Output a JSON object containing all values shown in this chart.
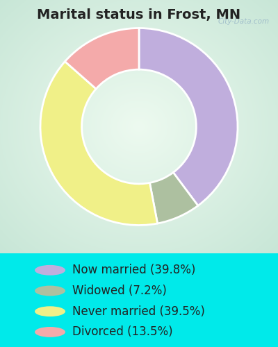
{
  "title": "Marital status in Frost, MN",
  "slices": [
    39.8,
    7.2,
    39.5,
    13.5
  ],
  "labels": [
    "Now married (39.8%)",
    "Widowed (7.2%)",
    "Never married (39.5%)",
    "Divorced (13.5%)"
  ],
  "colors": [
    "#c0aedd",
    "#adc0a0",
    "#f0f088",
    "#f4aaaa"
  ],
  "legend_colors": [
    "#c0aedd",
    "#adc0a0",
    "#f0f088",
    "#f4aaaa"
  ],
  "start_angle": 90,
  "donut_width": 0.42,
  "bg_outer": "#00eaea",
  "chart_bg_light": "#e8f8f0",
  "chart_bg_dark": "#c0ddd0",
  "title_fontsize": 14,
  "legend_fontsize": 12,
  "watermark": "City-Data.com"
}
